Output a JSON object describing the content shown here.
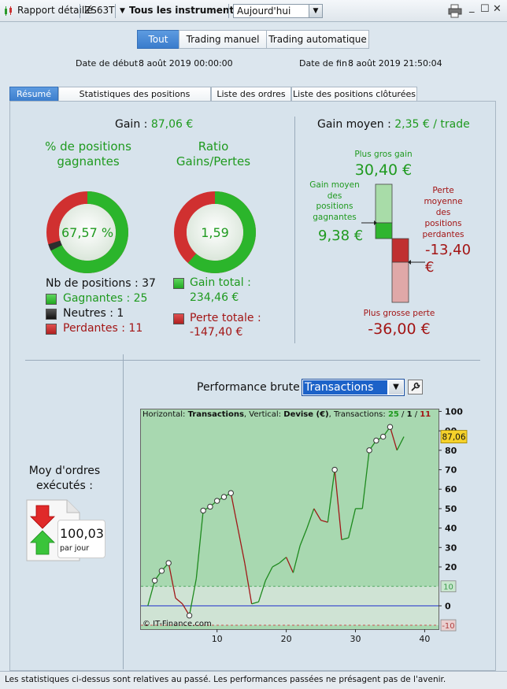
{
  "toolbar": {
    "report_label": "Rapport détaillé",
    "account": "ZS63T",
    "instruments": "Tous les instruments",
    "period": "Aujourd'hui"
  },
  "filters": {
    "buttons": [
      "Tout",
      "Trading manuel",
      "Trading automatique"
    ],
    "active": "Tout"
  },
  "dates": {
    "start_label": "Date de début :",
    "start_value": "8 août 2019 00:00:00",
    "end_label": "Date de fin :",
    "end_value": "8 août 2019 21:50:04"
  },
  "tabs": [
    "Résumé",
    "Statistiques des positions clôturées",
    "Liste des ordres",
    "Liste des positions clôturées"
  ],
  "summary": {
    "gain_label": "Gain :",
    "gain_value": "87,06 €",
    "win_pct_title": "% de positions gagnantes",
    "win_pct_value": "67,57 %",
    "win_pct_fraction": 0.6757,
    "ratio_title": "Ratio Gains/Pertes",
    "ratio_value": "1,59",
    "ratio_fraction": 0.614,
    "positions_label": "Nb de positions : 37",
    "winners": "Gagnantes : 25",
    "neutral": "Neutres : 1",
    "losers": "Perdantes : 11",
    "gain_total_label": "Gain total :",
    "gain_total_value": "234,46 €",
    "loss_total_label": "Perte totale :",
    "loss_total_value": "-147,40 €",
    "colors": {
      "green": "#2bb52b",
      "red": "#d03030",
      "neutral": "#2e2e2e"
    }
  },
  "avg_gain": {
    "label": "Gain moyen :",
    "value": "2,35 € / trade",
    "biggest_gain_label": "Plus gros gain",
    "biggest_gain_value": "30,40 €",
    "avg_win_label": "Gain moyen des positions gagnantes",
    "avg_win_value": "9,38 €",
    "avg_loss_label": "Perte moyenne des positions perdantes",
    "avg_loss_value": "-13,40 €",
    "biggest_loss_label": "Plus grosse perte",
    "biggest_loss_value": "-36,00 €"
  },
  "orders": {
    "title": "Moy d'ordres exécutés :",
    "value": "100,03",
    "unit": "par jour"
  },
  "perf": {
    "title": "Performance brute",
    "selector": "Transactions",
    "legend_h_label": "Horizontal: ",
    "legend_h_value": "Transactions",
    "legend_v_label": ", Vertical: ",
    "legend_v_value": "Devise (€)",
    "legend_t_label": ", Transactions: ",
    "legend_win": "25",
    "legend_sep1": " / ",
    "legend_neutral": "1",
    "legend_sep2": " / ",
    "legend_loss": "11",
    "last_value_label": "87,06",
    "upper_band_label": "10",
    "lower_band_label": "-10",
    "copyright": "© IT-Finance.com"
  },
  "chart_data": {
    "type": "line",
    "x": [
      0,
      1,
      2,
      3,
      4,
      5,
      6,
      7,
      8,
      9,
      10,
      11,
      12,
      13,
      14,
      15,
      16,
      17,
      18,
      19,
      20,
      21,
      22,
      23,
      24,
      25,
      26,
      27,
      28,
      29,
      30,
      31,
      32,
      33,
      34,
      35,
      36,
      37
    ],
    "y": [
      0,
      13,
      18,
      22,
      4,
      1,
      -5,
      14,
      49,
      51,
      54,
      56,
      58,
      40,
      22,
      1,
      2,
      13,
      20,
      22,
      25,
      17,
      31,
      40,
      50,
      44,
      43,
      70,
      34,
      35,
      50,
      50,
      80,
      85,
      87,
      92,
      80,
      87
    ],
    "xlim": [
      -1,
      42
    ],
    "ylim": [
      -12,
      101
    ],
    "xticks": [
      10,
      20,
      30,
      40
    ],
    "yticks": [
      -10,
      0,
      10,
      20,
      30,
      40,
      50,
      60,
      70,
      80,
      90,
      100
    ],
    "grid": false
  },
  "status_text": "Les statistiques ci-dessus sont relatives au passé. Les performances passées ne présagent pas de l'avenir."
}
